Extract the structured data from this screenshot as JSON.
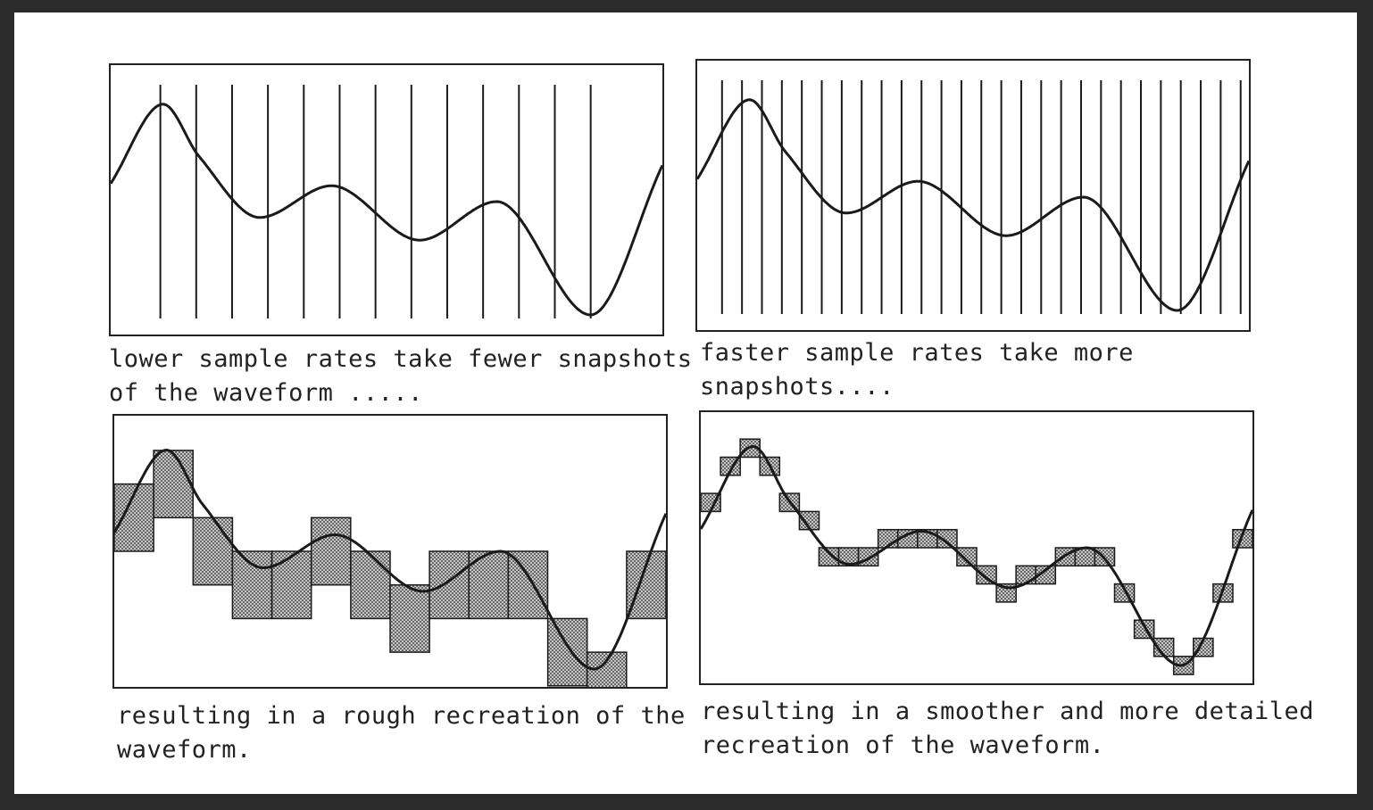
{
  "captions": {
    "top_left": "lower sample rates take fewer snapshots\nof the waveform .....",
    "top_right": "faster sample rates take more\nsnapshots....",
    "bottom_left": "resulting in a rough recreation of the\nwaveform.",
    "bottom_right": "resulting in a smoother and more detailed\nrecreation of the waveform."
  },
  "sampling": {
    "low_rate_samples": 13,
    "high_rate_samples": 27
  },
  "colors": {
    "line": "#1a1a1a",
    "block_fill": "#9a9a9a"
  }
}
